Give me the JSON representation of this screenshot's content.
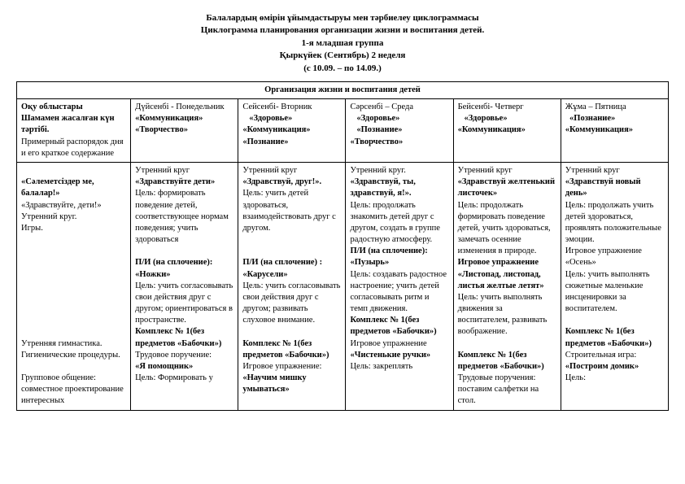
{
  "header": {
    "line1": "Балалардың өмірін ұйымдастыруы мен тәрбиелеу циклограммасы",
    "line2": "Циклограмма планирования  организации жизни и воспитания детей.",
    "line3": "1-я  младшая группа",
    "line4": "Қыркүйек (Сентябрь) 2 неделя",
    "line5": "(с 10.09. – по 14.09.)"
  },
  "org_title": "Организация жизни и воспитания детей",
  "col0": {
    "h1": "Оқу облыстары",
    "h2": "Шамамен жасалған күн тәртібі.",
    "h3": "Примерный распорядок дня и его краткое содержание"
  },
  "days": {
    "mon": {
      "title": "Дүйсенбі - Понедельник",
      "d1": "«Коммуникация»",
      "d2": "«Творчество»"
    },
    "tue": {
      "title": "Сейсенбі- Вторник",
      "d1": "«Здоровье»",
      "d2": "«Коммуникация»",
      "d3": "«Познание»"
    },
    "wed": {
      "title": "Сәрсенбі – Среда",
      "d1": "«Здоровье»",
      "d2": "«Познание»",
      "d3": "«Творчество»"
    },
    "thu": {
      "title": "Бейсенбі- Четверг",
      "d1": "«Здоровье»",
      "d2": "«Коммуникация»"
    },
    "fri": {
      "title": "Жұма – Пятница",
      "d1": "«Познание»",
      "d2": "«Коммуникация»"
    }
  },
  "row": {
    "left": {
      "p1": "«Сәлеметсіздер ме, балалар!»",
      "p2": "«Здравствуйте, дети!»",
      "p3": "Утренний круг.",
      "p4": "Игры.",
      "gap": " ",
      "p5": "Утренняя гимнастика.",
      "p6": "Гигиенические процедуры.",
      "p7": "Групповое общение: совместное проектирование интересных"
    },
    "mon": {
      "a": "Утренний круг",
      "b": "«Здравствуйте дети»",
      "c": "Цель: формировать поведение детей, соответствующее нормам поведения; учить здороваться",
      "d": "П/И (на сплочение):",
      "e": "«Ножки»",
      "f": "Цель: учить согласовывать свои действия друг с другом; ориентироваться в пространстве.",
      "g": "Комплекс № 1(без предметов «Бабочки»)",
      "h": "Трудовое поручение:",
      "i": "«Я помощник»",
      "j": "Цель: Формировать  у"
    },
    "tue": {
      "a": "Утренний круг",
      "b": "«Здравствуй, друг!».",
      "c": "Цель: учить детей здороваться, взаимодействовать друг с другом.",
      "d": "П/И (на сплочение) :",
      "e": "«Карусели»",
      "f": "Цель: учить согласовывать свои действия друг с другом; развивать слуховое внимание.",
      "g": "Комплекс № 1(без предметов «Бабочки»)",
      "h": "Игровое упражнение:",
      "i": "«Научим мишку умываться»"
    },
    "wed": {
      "a": "Утренний круг.",
      "b": "«Здравствуй, ты, здравствуй, я!».",
      "c": "Цель: продолжать знакомить детей друг с другом, создать в группе радостную атмосферу.",
      "d": "П/И (на сплочение):",
      "e": "«Пузырь»",
      "f": "Цель: создавать радостное настроение; учить детей согласовывать ритм и темп движения.",
      "g": "Комплекс № 1(без предметов «Бабочки»)",
      "h": "Игровое упражнение",
      "i": "«Чистенькие ручки»",
      "j": "Цель: закреплять"
    },
    "thu": {
      "a": "Утренний круг",
      "b": "«Здравствуй желтенький листочек»",
      "c": "Цель: продолжать формировать  поведение детей, учить здороваться, замечать осенние изменения в природе.",
      "d": "Игровое упражнение",
      "e": "«Листопад, листопад, листья желтые летят»",
      "f": "Цель: учить выполнять движения за воспитателем,  развивать воображение.",
      "g": "Комплекс № 1(без предметов «Бабочки»)",
      "h": "Трудовые поручения: поставим салфетки на стол."
    },
    "fri": {
      "a": "Утренний круг",
      "b": "«Здравствуй новый день»",
      "c": "Цель: продолжать учить детей здороваться, проявлять положительные эмоции.",
      "d": "Игровое упражнение «Осень»",
      "e": "Цель: учить выполнять сюжетные маленькие инсценировки за воспитателем.",
      "g": "Комплекс № 1(без предметов «Бабочки»)",
      "h": "Строительная игра:",
      "i": "«Построим домик»",
      "j": "Цель:"
    }
  }
}
